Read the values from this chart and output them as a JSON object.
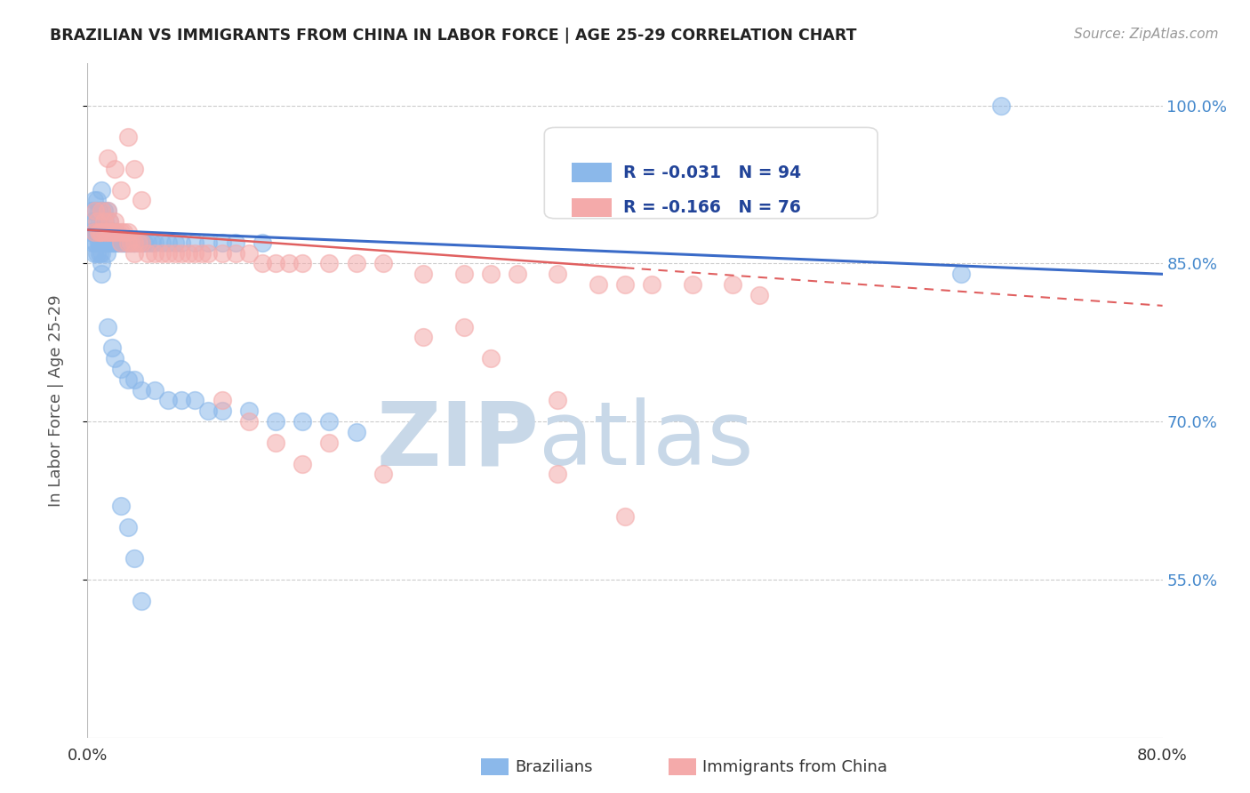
{
  "title": "BRAZILIAN VS IMMIGRANTS FROM CHINA IN LABOR FORCE | AGE 25-29 CORRELATION CHART",
  "source": "Source: ZipAtlas.com",
  "ylabel": "In Labor Force | Age 25-29",
  "blue_R": -0.031,
  "blue_N": 94,
  "pink_R": -0.166,
  "pink_N": 76,
  "xlim": [
    0.0,
    0.8
  ],
  "ylim": [
    0.4,
    1.04
  ],
  "yticks": [
    0.55,
    0.7,
    0.85,
    1.0
  ],
  "ytick_labels": [
    "55.0%",
    "70.0%",
    "85.0%",
    "100.0%"
  ],
  "blue_color": "#8BB8EA",
  "pink_color": "#F4AAAA",
  "blue_line_color": "#3A6BC8",
  "pink_line_color": "#E06060",
  "watermark_color": "#C8D8E8",
  "background_color": "#FFFFFF",
  "blue_scatter_x": [
    0.002,
    0.003,
    0.004,
    0.004,
    0.005,
    0.005,
    0.005,
    0.006,
    0.006,
    0.006,
    0.007,
    0.007,
    0.007,
    0.007,
    0.008,
    0.008,
    0.008,
    0.009,
    0.009,
    0.009,
    0.01,
    0.01,
    0.01,
    0.01,
    0.01,
    0.01,
    0.01,
    0.012,
    0.012,
    0.012,
    0.013,
    0.013,
    0.014,
    0.014,
    0.015,
    0.015,
    0.015,
    0.016,
    0.016,
    0.017,
    0.018,
    0.018,
    0.019,
    0.02,
    0.02,
    0.022,
    0.023,
    0.025,
    0.026,
    0.027,
    0.028,
    0.03,
    0.032,
    0.034,
    0.035,
    0.038,
    0.04,
    0.042,
    0.045,
    0.048,
    0.05,
    0.055,
    0.06,
    0.065,
    0.07,
    0.08,
    0.09,
    0.1,
    0.11,
    0.13,
    0.015,
    0.018,
    0.02,
    0.025,
    0.03,
    0.035,
    0.04,
    0.05,
    0.06,
    0.07,
    0.08,
    0.09,
    0.1,
    0.12,
    0.14,
    0.16,
    0.18,
    0.2,
    0.025,
    0.03,
    0.035,
    0.04,
    0.65,
    0.68
  ],
  "blue_scatter_y": [
    0.88,
    0.9,
    0.87,
    0.89,
    0.91,
    0.88,
    0.86,
    0.9,
    0.88,
    0.87,
    0.91,
    0.89,
    0.88,
    0.86,
    0.9,
    0.88,
    0.87,
    0.89,
    0.87,
    0.86,
    0.92,
    0.9,
    0.88,
    0.87,
    0.86,
    0.85,
    0.84,
    0.9,
    0.88,
    0.87,
    0.89,
    0.87,
    0.88,
    0.86,
    0.9,
    0.88,
    0.87,
    0.89,
    0.87,
    0.88,
    0.88,
    0.87,
    0.87,
    0.88,
    0.87,
    0.87,
    0.87,
    0.87,
    0.87,
    0.87,
    0.87,
    0.87,
    0.87,
    0.87,
    0.87,
    0.87,
    0.87,
    0.87,
    0.87,
    0.87,
    0.87,
    0.87,
    0.87,
    0.87,
    0.87,
    0.87,
    0.87,
    0.87,
    0.87,
    0.87,
    0.79,
    0.77,
    0.76,
    0.75,
    0.74,
    0.74,
    0.73,
    0.73,
    0.72,
    0.72,
    0.72,
    0.71,
    0.71,
    0.71,
    0.7,
    0.7,
    0.7,
    0.69,
    0.62,
    0.6,
    0.57,
    0.53,
    0.84,
    1.0
  ],
  "pink_scatter_x": [
    0.005,
    0.006,
    0.007,
    0.008,
    0.009,
    0.01,
    0.01,
    0.012,
    0.013,
    0.015,
    0.015,
    0.016,
    0.017,
    0.018,
    0.02,
    0.02,
    0.022,
    0.025,
    0.025,
    0.027,
    0.03,
    0.03,
    0.032,
    0.035,
    0.035,
    0.038,
    0.04,
    0.045,
    0.05,
    0.055,
    0.06,
    0.065,
    0.07,
    0.075,
    0.08,
    0.085,
    0.09,
    0.1,
    0.11,
    0.12,
    0.13,
    0.14,
    0.15,
    0.16,
    0.18,
    0.2,
    0.22,
    0.25,
    0.28,
    0.3,
    0.32,
    0.35,
    0.38,
    0.4,
    0.42,
    0.45,
    0.48,
    0.5,
    0.015,
    0.02,
    0.025,
    0.03,
    0.035,
    0.04,
    0.25,
    0.28,
    0.3,
    0.35,
    0.18,
    0.22,
    0.1,
    0.12,
    0.14,
    0.16,
    0.35,
    0.4
  ],
  "pink_scatter_y": [
    0.88,
    0.9,
    0.89,
    0.88,
    0.88,
    0.9,
    0.88,
    0.89,
    0.88,
    0.9,
    0.88,
    0.89,
    0.88,
    0.88,
    0.89,
    0.88,
    0.88,
    0.88,
    0.87,
    0.88,
    0.88,
    0.87,
    0.87,
    0.87,
    0.86,
    0.87,
    0.87,
    0.86,
    0.86,
    0.86,
    0.86,
    0.86,
    0.86,
    0.86,
    0.86,
    0.86,
    0.86,
    0.86,
    0.86,
    0.86,
    0.85,
    0.85,
    0.85,
    0.85,
    0.85,
    0.85,
    0.85,
    0.84,
    0.84,
    0.84,
    0.84,
    0.84,
    0.83,
    0.83,
    0.83,
    0.83,
    0.83,
    0.82,
    0.95,
    0.94,
    0.92,
    0.97,
    0.94,
    0.91,
    0.78,
    0.79,
    0.76,
    0.72,
    0.68,
    0.65,
    0.72,
    0.7,
    0.68,
    0.66,
    0.65,
    0.61
  ]
}
